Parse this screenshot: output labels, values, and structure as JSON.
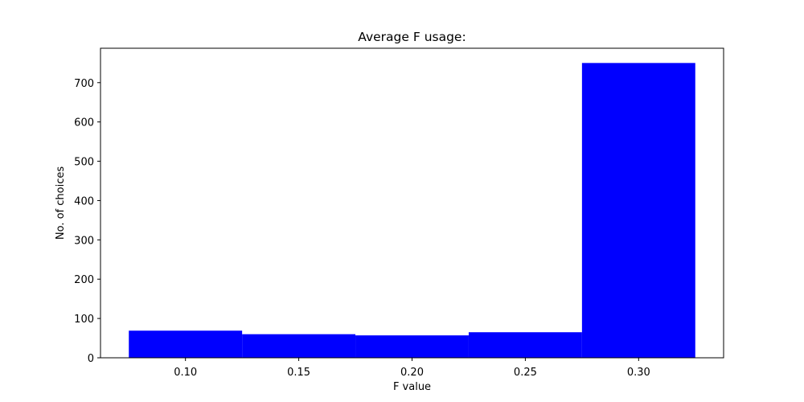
{
  "chart_data": {
    "type": "bar",
    "title": "Average F usage:",
    "xlabel": "F value",
    "ylabel": "No. of choices",
    "bin_edges": [
      0.075,
      0.125,
      0.175,
      0.225,
      0.275,
      0.325
    ],
    "values": [
      69,
      60,
      57,
      65,
      750
    ],
    "xlim": [
      0.0625,
      0.3375
    ],
    "ylim": [
      0,
      787.5
    ],
    "xticks": [
      0.1,
      0.15,
      0.2,
      0.25,
      0.3
    ],
    "xtick_labels": [
      "0.10",
      "0.15",
      "0.20",
      "0.25",
      "0.30"
    ],
    "yticks": [
      0,
      100,
      200,
      300,
      400,
      500,
      600,
      700
    ],
    "ytick_labels": [
      "0",
      "100",
      "200",
      "300",
      "400",
      "500",
      "600",
      "700"
    ],
    "bar_color": "#0000ff",
    "grid": false,
    "legend": "none"
  }
}
